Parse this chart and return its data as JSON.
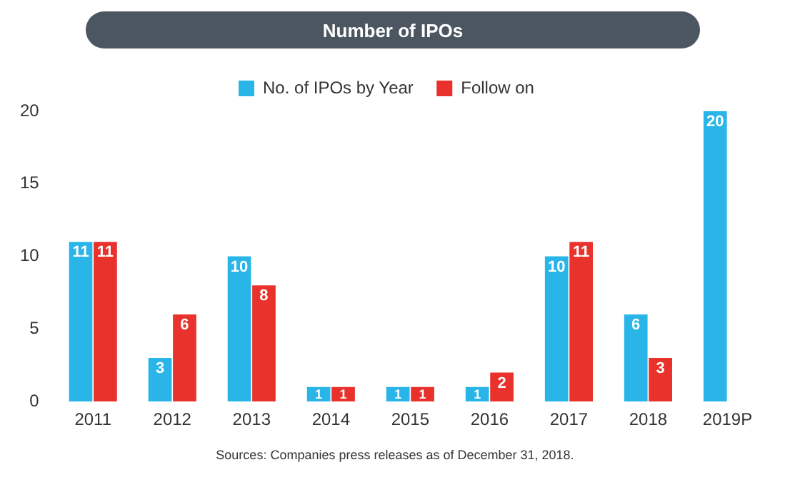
{
  "chart_data": {
    "type": "bar",
    "title": "Number of IPOs",
    "categories": [
      "2011",
      "2012",
      "2013",
      "2014",
      "2015",
      "2016",
      "2017",
      "2018",
      "2019P"
    ],
    "series": [
      {
        "name": "No. of IPOs by Year",
        "color": "#29b5e8",
        "values": [
          11,
          3,
          10,
          1,
          1,
          1,
          10,
          6,
          20
        ]
      },
      {
        "name": "Follow on",
        "color": "#e8322b",
        "values": [
          11,
          6,
          8,
          1,
          1,
          2,
          11,
          3,
          null
        ]
      }
    ],
    "ylim": [
      0,
      20
    ],
    "yticks": [
      0,
      5,
      10,
      15,
      20
    ],
    "grid": false,
    "legend": "top",
    "data_labels": true,
    "annotations": [
      "Sources: Companies press releases as of December 31, 2018."
    ]
  }
}
